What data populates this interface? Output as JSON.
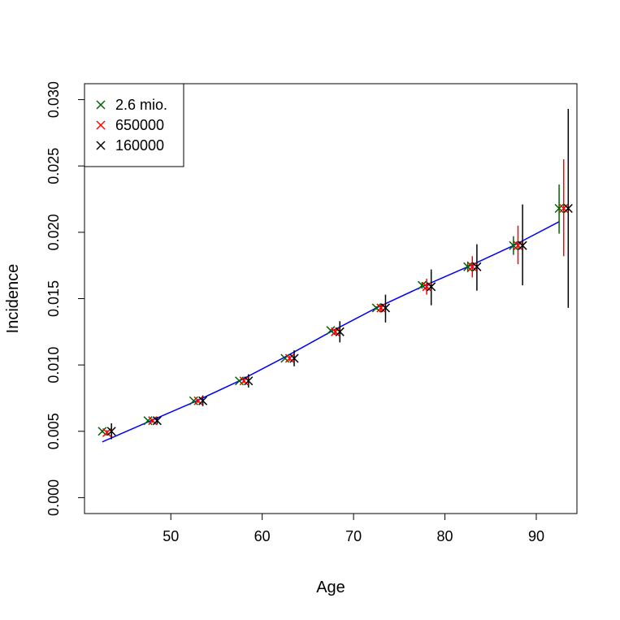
{
  "chart_data": {
    "type": "scatter",
    "title": "",
    "xlabel": "Age",
    "ylabel": "Incidence",
    "xlim": [
      40.55,
      94.45
    ],
    "ylim": [
      -0.0012,
      0.0312
    ],
    "x_ticks": [
      50,
      60,
      70,
      80,
      90
    ],
    "y_ticks": [
      0.0,
      0.005,
      0.01,
      0.015,
      0.02,
      0.025,
      0.03
    ],
    "y_tick_labels": [
      "0.000",
      "0.005",
      "0.010",
      "0.015",
      "0.020",
      "0.025",
      "0.030"
    ],
    "grid": false,
    "legend_position": "top-left",
    "series": [
      {
        "name": "2.6 mio.",
        "color": "#006400",
        "marker": "x",
        "x": [
          42.5,
          47.5,
          52.5,
          57.5,
          62.5,
          67.5,
          72.5,
          77.5,
          82.5,
          87.5,
          92.5
        ],
        "y": [
          0.005,
          0.0058,
          0.0073,
          0.0088,
          0.0105,
          0.0126,
          0.0143,
          0.016,
          0.0174,
          0.019,
          0.0218
        ],
        "err_low": [
          0.0049,
          0.00575,
          0.00725,
          0.00872,
          0.01042,
          0.01252,
          0.01418,
          0.01575,
          0.017,
          0.0183,
          0.0199
        ],
        "err_high": [
          0.0051,
          0.00585,
          0.00735,
          0.00888,
          0.01058,
          0.01268,
          0.01442,
          0.01625,
          0.0178,
          0.0197,
          0.0236
        ]
      },
      {
        "name": "650000",
        "color": "#ff0000",
        "marker": "x",
        "x": [
          43.0,
          48.0,
          53.0,
          58.0,
          63.0,
          68.0,
          73.0,
          78.0,
          83.0,
          88.0,
          93.0
        ],
        "y": [
          0.0049,
          0.0058,
          0.0073,
          0.0088,
          0.0105,
          0.0125,
          0.0143,
          0.0159,
          0.0174,
          0.019,
          0.0218
        ],
        "err_low": [
          0.0047,
          0.00565,
          0.00715,
          0.00865,
          0.0103,
          0.01225,
          0.01395,
          0.0153,
          0.0166,
          0.0176,
          0.0182
        ],
        "err_high": [
          0.0051,
          0.00595,
          0.00745,
          0.00895,
          0.0107,
          0.01275,
          0.01465,
          0.0165,
          0.0182,
          0.0205,
          0.0255
        ]
      },
      {
        "name": "160000",
        "color": "#000000",
        "marker": "x",
        "x": [
          43.5,
          48.5,
          53.5,
          58.5,
          63.5,
          68.5,
          73.5,
          78.5,
          83.5,
          88.5,
          93.5
        ],
        "y": [
          0.005,
          0.0058,
          0.0073,
          0.0088,
          0.0105,
          0.0125,
          0.0143,
          0.0159,
          0.0174,
          0.019,
          0.0218
        ],
        "err_low": [
          0.0044,
          0.0055,
          0.0069,
          0.0083,
          0.0099,
          0.0117,
          0.0132,
          0.0145,
          0.0156,
          0.016,
          0.0143
        ],
        "err_high": [
          0.0056,
          0.0061,
          0.0077,
          0.0093,
          0.0111,
          0.0133,
          0.0153,
          0.0172,
          0.0191,
          0.0221,
          0.0293
        ]
      }
    ],
    "fit_line": {
      "color": "#0000ff",
      "x": [
        42.5,
        47.5,
        52.5,
        57.5,
        62.5,
        67.5,
        72.5,
        77.5,
        82.5,
        87.5,
        92.5
      ],
      "y": [
        0.0042,
        0.0057,
        0.0072,
        0.0088,
        0.0106,
        0.0125,
        0.0143,
        0.0159,
        0.0174,
        0.019,
        0.0208
      ]
    }
  }
}
